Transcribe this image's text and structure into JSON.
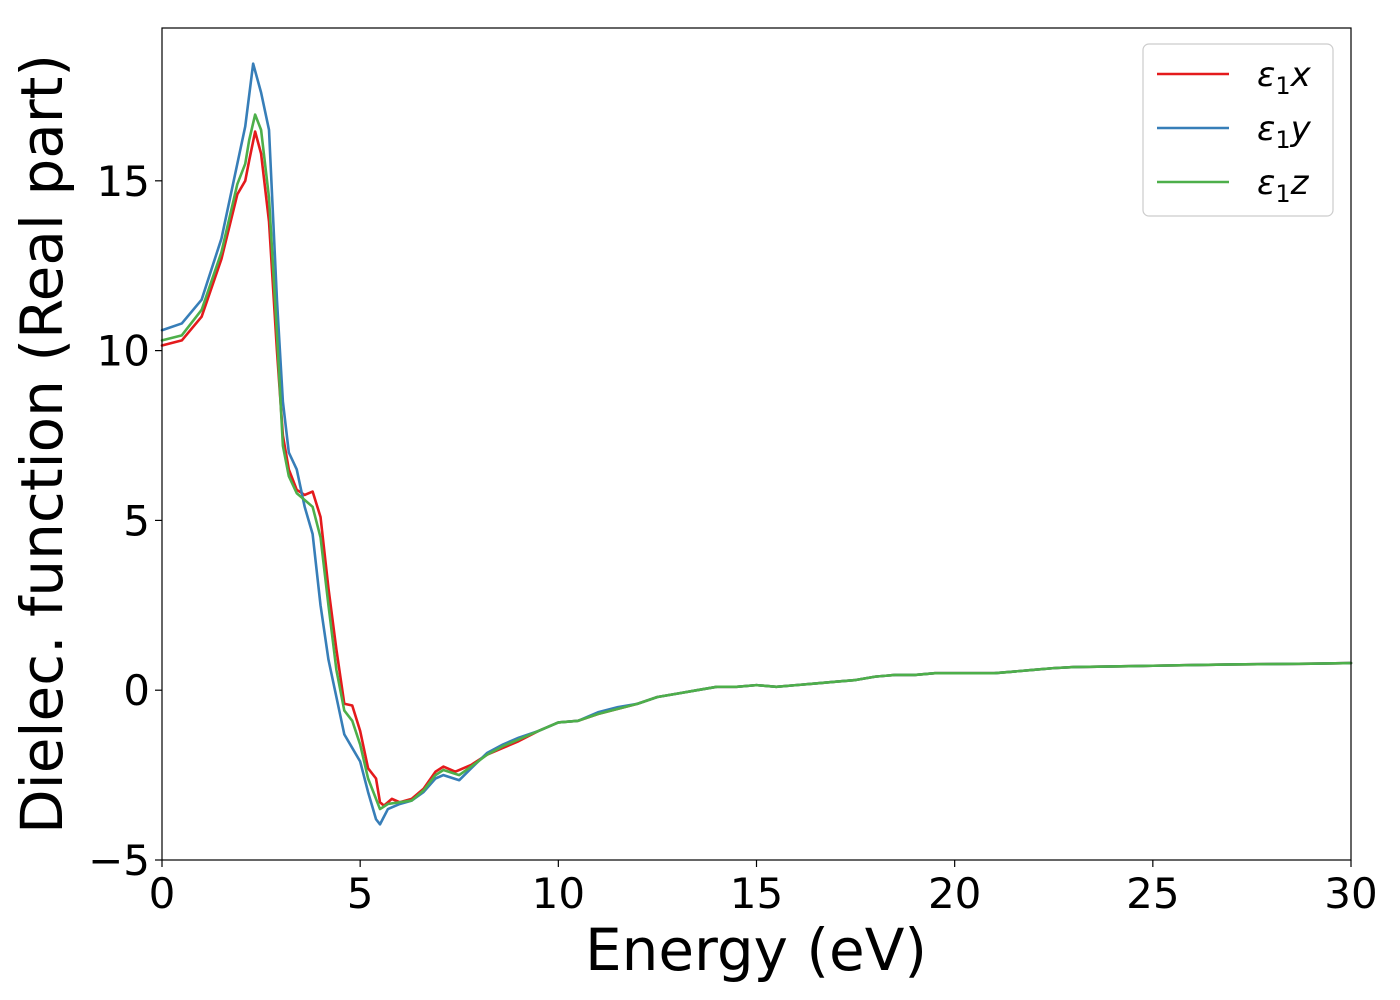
{
  "chart_data": {
    "type": "line",
    "xlabel": "Energy (eV)",
    "ylabel": "Dielec. function (Real part)",
    "xlim": [
      0,
      30
    ],
    "ylim": [
      -5,
      19.5
    ],
    "xticks": [
      0,
      5,
      10,
      15,
      20,
      25,
      30
    ],
    "yticks": [
      -5,
      0,
      5,
      10,
      15
    ],
    "xtick_labels": [
      "0",
      "5",
      "10",
      "15",
      "20",
      "25",
      "30"
    ],
    "ytick_labels": [
      "−5",
      "0",
      "5",
      "10",
      "15"
    ],
    "grid": false,
    "legend_position": "top-right",
    "series": [
      {
        "name": "ε₁x",
        "legend": {
          "base": "ε",
          "sub": "1",
          "var": "x"
        },
        "color": "#e41a1c",
        "points": [
          [
            0,
            10.15
          ],
          [
            0.5,
            10.3
          ],
          [
            1.0,
            11.0
          ],
          [
            1.5,
            12.7
          ],
          [
            1.9,
            14.6
          ],
          [
            2.1,
            15.0
          ],
          [
            2.2,
            15.6
          ],
          [
            2.35,
            16.45
          ],
          [
            2.5,
            15.8
          ],
          [
            2.7,
            13.8
          ],
          [
            2.9,
            10.0
          ],
          [
            3.05,
            7.5
          ],
          [
            3.2,
            6.5
          ],
          [
            3.4,
            5.9
          ],
          [
            3.6,
            5.75
          ],
          [
            3.8,
            5.85
          ],
          [
            4.0,
            5.1
          ],
          [
            4.2,
            3.0
          ],
          [
            4.4,
            1.2
          ],
          [
            4.6,
            -0.4
          ],
          [
            4.8,
            -0.45
          ],
          [
            5.0,
            -1.2
          ],
          [
            5.2,
            -2.3
          ],
          [
            5.4,
            -2.6
          ],
          [
            5.5,
            -3.3
          ],
          [
            5.6,
            -3.4
          ],
          [
            5.8,
            -3.2
          ],
          [
            6.0,
            -3.3
          ],
          [
            6.3,
            -3.2
          ],
          [
            6.6,
            -2.9
          ],
          [
            6.9,
            -2.4
          ],
          [
            7.1,
            -2.25
          ],
          [
            7.4,
            -2.4
          ],
          [
            7.8,
            -2.2
          ],
          [
            8.2,
            -1.9
          ],
          [
            8.6,
            -1.7
          ],
          [
            9.0,
            -1.5
          ],
          [
            9.5,
            -1.2
          ],
          [
            10.0,
            -0.95
          ],
          [
            10.5,
            -0.9
          ],
          [
            11.0,
            -0.7
          ],
          [
            11.5,
            -0.55
          ],
          [
            12.0,
            -0.4
          ],
          [
            12.5,
            -0.2
          ],
          [
            13.0,
            -0.1
          ],
          [
            13.5,
            0.0
          ],
          [
            14.0,
            0.1
          ],
          [
            14.5,
            0.1
          ],
          [
            15.0,
            0.15
          ],
          [
            15.5,
            0.1
          ],
          [
            16.0,
            0.15
          ],
          [
            16.5,
            0.2
          ],
          [
            17.0,
            0.25
          ],
          [
            17.5,
            0.3
          ],
          [
            18.0,
            0.4
          ],
          [
            18.5,
            0.45
          ],
          [
            19.0,
            0.45
          ],
          [
            19.5,
            0.5
          ],
          [
            20.0,
            0.5
          ],
          [
            20.5,
            0.5
          ],
          [
            21.0,
            0.5
          ],
          [
            21.5,
            0.55
          ],
          [
            22.0,
            0.6
          ],
          [
            22.5,
            0.65
          ],
          [
            23.0,
            0.68
          ],
          [
            24.0,
            0.7
          ],
          [
            25.0,
            0.72
          ],
          [
            26.0,
            0.74
          ],
          [
            27.0,
            0.76
          ],
          [
            28.0,
            0.77
          ],
          [
            29.0,
            0.78
          ],
          [
            30.0,
            0.8
          ]
        ]
      },
      {
        "name": "ε₁y",
        "legend": {
          "base": "ε",
          "sub": "1",
          "var": "y"
        },
        "color": "#377eb8",
        "points": [
          [
            0,
            10.6
          ],
          [
            0.5,
            10.8
          ],
          [
            1.0,
            11.5
          ],
          [
            1.5,
            13.3
          ],
          [
            1.9,
            15.5
          ],
          [
            2.1,
            16.6
          ],
          [
            2.3,
            18.45
          ],
          [
            2.5,
            17.6
          ],
          [
            2.7,
            16.5
          ],
          [
            2.9,
            11.5
          ],
          [
            3.05,
            8.5
          ],
          [
            3.2,
            7.0
          ],
          [
            3.4,
            6.5
          ],
          [
            3.6,
            5.4
          ],
          [
            3.8,
            4.6
          ],
          [
            4.0,
            2.5
          ],
          [
            4.2,
            0.9
          ],
          [
            4.4,
            -0.2
          ],
          [
            4.6,
            -1.3
          ],
          [
            4.8,
            -1.7
          ],
          [
            5.0,
            -2.1
          ],
          [
            5.2,
            -3.0
          ],
          [
            5.4,
            -3.8
          ],
          [
            5.5,
            -3.95
          ],
          [
            5.7,
            -3.5
          ],
          [
            6.0,
            -3.35
          ],
          [
            6.3,
            -3.25
          ],
          [
            6.6,
            -3.0
          ],
          [
            6.9,
            -2.6
          ],
          [
            7.1,
            -2.5
          ],
          [
            7.5,
            -2.65
          ],
          [
            7.8,
            -2.3
          ],
          [
            8.2,
            -1.85
          ],
          [
            8.6,
            -1.6
          ],
          [
            9.0,
            -1.4
          ],
          [
            9.5,
            -1.2
          ],
          [
            10.0,
            -0.95
          ],
          [
            10.5,
            -0.9
          ],
          [
            11.0,
            -0.65
          ],
          [
            11.5,
            -0.5
          ],
          [
            12.0,
            -0.4
          ],
          [
            12.5,
            -0.2
          ],
          [
            13.0,
            -0.1
          ],
          [
            13.5,
            0.0
          ],
          [
            14.0,
            0.1
          ],
          [
            14.5,
            0.1
          ],
          [
            15.0,
            0.15
          ],
          [
            15.5,
            0.1
          ],
          [
            16.0,
            0.15
          ],
          [
            16.5,
            0.2
          ],
          [
            17.0,
            0.25
          ],
          [
            17.5,
            0.3
          ],
          [
            18.0,
            0.4
          ],
          [
            18.5,
            0.45
          ],
          [
            19.0,
            0.45
          ],
          [
            19.5,
            0.5
          ],
          [
            20.0,
            0.5
          ],
          [
            20.5,
            0.5
          ],
          [
            21.0,
            0.5
          ],
          [
            21.5,
            0.55
          ],
          [
            22.0,
            0.6
          ],
          [
            22.5,
            0.65
          ],
          [
            23.0,
            0.68
          ],
          [
            24.0,
            0.7
          ],
          [
            25.0,
            0.72
          ],
          [
            26.0,
            0.74
          ],
          [
            27.0,
            0.76
          ],
          [
            28.0,
            0.77
          ],
          [
            29.0,
            0.78
          ],
          [
            30.0,
            0.8
          ]
        ]
      },
      {
        "name": "ε₁z",
        "legend": {
          "base": "ε",
          "sub": "1",
          "var": "z"
        },
        "color": "#4daf4a",
        "points": [
          [
            0,
            10.3
          ],
          [
            0.5,
            10.45
          ],
          [
            1.0,
            11.2
          ],
          [
            1.5,
            12.9
          ],
          [
            1.9,
            14.9
          ],
          [
            2.1,
            15.5
          ],
          [
            2.2,
            16.2
          ],
          [
            2.35,
            16.95
          ],
          [
            2.5,
            16.5
          ],
          [
            2.7,
            14.5
          ],
          [
            2.9,
            10.5
          ],
          [
            3.05,
            7.2
          ],
          [
            3.2,
            6.3
          ],
          [
            3.4,
            5.8
          ],
          [
            3.6,
            5.6
          ],
          [
            3.8,
            5.4
          ],
          [
            4.0,
            4.5
          ],
          [
            4.2,
            2.5
          ],
          [
            4.4,
            0.6
          ],
          [
            4.6,
            -0.6
          ],
          [
            4.8,
            -0.9
          ],
          [
            5.0,
            -1.6
          ],
          [
            5.2,
            -2.6
          ],
          [
            5.4,
            -3.2
          ],
          [
            5.5,
            -3.5
          ],
          [
            5.7,
            -3.35
          ],
          [
            6.0,
            -3.3
          ],
          [
            6.3,
            -3.25
          ],
          [
            6.6,
            -2.95
          ],
          [
            6.9,
            -2.5
          ],
          [
            7.1,
            -2.35
          ],
          [
            7.5,
            -2.5
          ],
          [
            7.8,
            -2.25
          ],
          [
            8.2,
            -1.9
          ],
          [
            8.6,
            -1.65
          ],
          [
            9.0,
            -1.45
          ],
          [
            9.5,
            -1.2
          ],
          [
            10.0,
            -0.95
          ],
          [
            10.5,
            -0.9
          ],
          [
            11.0,
            -0.7
          ],
          [
            11.5,
            -0.55
          ],
          [
            12.0,
            -0.4
          ],
          [
            12.5,
            -0.2
          ],
          [
            13.0,
            -0.1
          ],
          [
            13.5,
            0.0
          ],
          [
            14.0,
            0.1
          ],
          [
            14.5,
            0.1
          ],
          [
            15.0,
            0.15
          ],
          [
            15.5,
            0.1
          ],
          [
            16.0,
            0.15
          ],
          [
            16.5,
            0.2
          ],
          [
            17.0,
            0.25
          ],
          [
            17.5,
            0.3
          ],
          [
            18.0,
            0.4
          ],
          [
            18.5,
            0.45
          ],
          [
            19.0,
            0.45
          ],
          [
            19.5,
            0.5
          ],
          [
            20.0,
            0.5
          ],
          [
            20.5,
            0.5
          ],
          [
            21.0,
            0.5
          ],
          [
            21.5,
            0.55
          ],
          [
            22.0,
            0.6
          ],
          [
            22.5,
            0.65
          ],
          [
            23.0,
            0.68
          ],
          [
            24.0,
            0.7
          ],
          [
            25.0,
            0.72
          ],
          [
            26.0,
            0.74
          ],
          [
            27.0,
            0.76
          ],
          [
            28.0,
            0.77
          ],
          [
            29.0,
            0.78
          ],
          [
            30.0,
            0.8
          ]
        ]
      }
    ]
  }
}
